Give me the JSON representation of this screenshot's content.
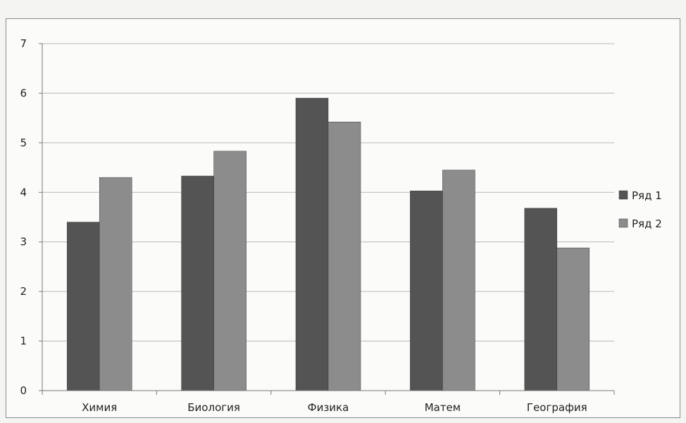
{
  "chart_data": {
    "type": "bar",
    "categories": [
      "Химия",
      "Биология",
      "Физика",
      "Матем",
      "География"
    ],
    "series": [
      {
        "name": "Ряд 1",
        "values": [
          3.4,
          4.33,
          5.9,
          4.03,
          3.68
        ],
        "color": "#545454"
      },
      {
        "name": "Ряд 2",
        "values": [
          4.3,
          4.83,
          5.42,
          4.45,
          2.88
        ],
        "color": "#8c8c8c"
      }
    ],
    "y_ticks": [
      "0",
      "1",
      "2",
      "3",
      "4",
      "5",
      "6",
      "7"
    ],
    "ylim": [
      0,
      7
    ],
    "grid": true,
    "legend_position": "right"
  }
}
